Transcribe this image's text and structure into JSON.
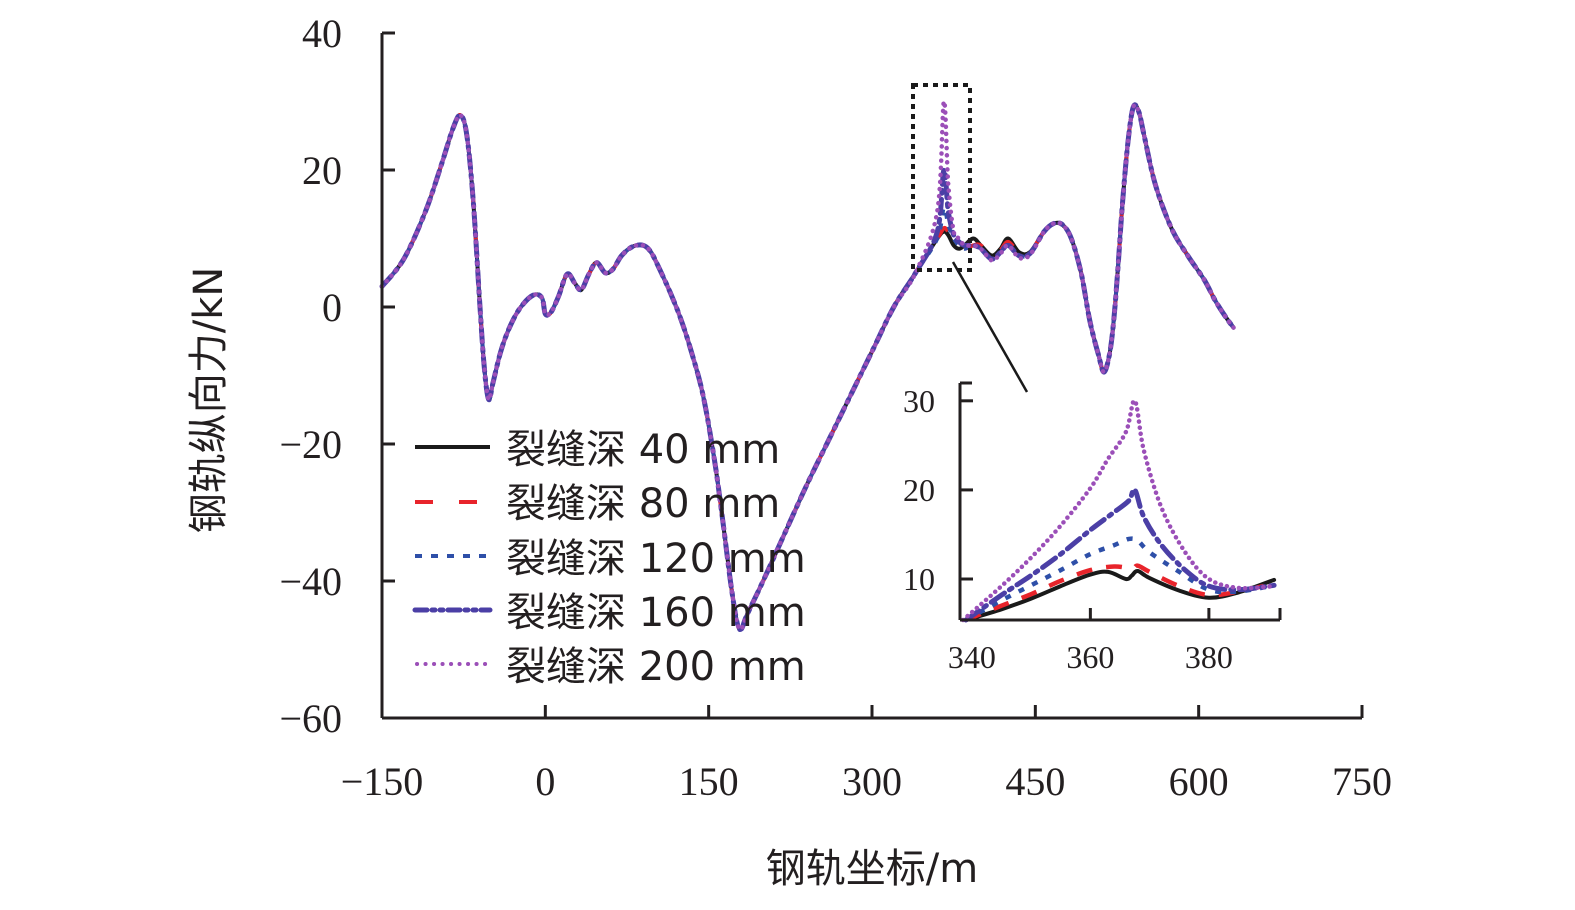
{
  "chart_data": [
    {
      "type": "line",
      "title": "",
      "xlabel": "钢轨坐标/m",
      "ylabel": "钢轨纵向力/kN",
      "xlim": [
        -150,
        750
      ],
      "ylim": [
        -60,
        40
      ],
      "xticks": [
        "−150",
        "0",
        "150",
        "300",
        "450",
        "600",
        "750"
      ],
      "xtick_values": [
        -150,
        0,
        150,
        300,
        450,
        600,
        750
      ],
      "yticks": [
        "40",
        "20",
        "0",
        "−20",
        "−40",
        "−60"
      ],
      "ytick_values": [
        40,
        20,
        0,
        -20,
        -40,
        -60
      ],
      "grid": false,
      "legend_position": "bottom-left",
      "x": [
        -150,
        -130,
        -110,
        -95,
        -85,
        -78,
        -72,
        -66,
        -60,
        -56,
        -52,
        -48,
        -40,
        -30,
        -20,
        -10,
        -3,
        0,
        5,
        12,
        20,
        27,
        33,
        40,
        47,
        55,
        62,
        70,
        80,
        90,
        97,
        105,
        115,
        125,
        135,
        145,
        155,
        162,
        170,
        176,
        180,
        185,
        200,
        220,
        240,
        260,
        280,
        300,
        320,
        340,
        360
      ],
      "base_values": [
        3,
        7,
        14,
        21,
        26,
        28,
        25,
        15,
        0,
        -9,
        -13.5,
        -11,
        -6,
        -2,
        0.5,
        1.8,
        1.3,
        -1,
        -0.8,
        1.5,
        4.8,
        3.5,
        2.5,
        4.8,
        6.5,
        5,
        5.5,
        7.5,
        8.8,
        9,
        8,
        5.5,
        2,
        -2,
        -7,
        -13,
        -22,
        -30,
        -40,
        -46,
        -47,
        -45,
        -40,
        -33,
        -26,
        -19.5,
        -13,
        -6.5,
        0,
        5,
        10
      ],
      "x_right": [
        360,
        366,
        370,
        375,
        380,
        385,
        393,
        400,
        410,
        418,
        425,
        435,
        445,
        458,
        467,
        475,
        483,
        492,
        500,
        508,
        513,
        518,
        522,
        526,
        530,
        535,
        540,
        545,
        550,
        560,
        575,
        590,
        605,
        615,
        625,
        632
      ],
      "series": [
        {
          "name": "裂缝深 40 mm",
          "color": "#1a1a1a",
          "style": "solid",
          "peak": 11,
          "right_values": [
            10,
            11,
            10.5,
            9,
            8.5,
            9,
            10,
            9,
            7.5,
            8.5,
            10,
            8,
            8,
            11,
            12.2,
            12,
            10,
            5,
            -2,
            -7,
            -9.5,
            -7,
            -2,
            6,
            15,
            24,
            29.2,
            28.5,
            25,
            18,
            11.5,
            7.5,
            4,
            1,
            -1.5,
            -3
          ]
        },
        {
          "name": "裂缝深 80 mm",
          "color": "#e8242b",
          "style": "dash",
          "peak": 11.5,
          "right_values": [
            10,
            11.5,
            11,
            10,
            9,
            8.5,
            9,
            9,
            7.3,
            8.3,
            9.5,
            8,
            8,
            11,
            12.2,
            12,
            10,
            5,
            -2,
            -7,
            -9.5,
            -7,
            -2,
            6,
            15,
            24,
            29.2,
            28.5,
            25,
            18,
            11.5,
            7.5,
            4,
            1,
            -1.5,
            -3
          ]
        },
        {
          "name": "裂缝深 120 mm",
          "color": "#2e4fa8",
          "style": "dot-square",
          "peak": 14.5,
          "right_values": [
            10,
            14.5,
            12,
            10,
            9,
            8.5,
            9,
            8.5,
            7,
            8,
            9,
            7.5,
            7.8,
            11,
            12.2,
            12,
            10,
            5,
            -2,
            -7,
            -9.5,
            -7,
            -2,
            6,
            15,
            24,
            29.2,
            28.5,
            25,
            18,
            11.5,
            7.5,
            4,
            1,
            -1.5,
            -3
          ]
        },
        {
          "name": "裂缝深 160 mm",
          "color": "#4b3fa6",
          "style": "dash-dot",
          "peak": 20,
          "right_values": [
            11,
            20,
            14,
            10.5,
            9.5,
            9,
            9,
            8.5,
            7,
            8,
            9,
            7.5,
            7.8,
            11,
            12.2,
            12,
            10,
            5,
            -2,
            -7,
            -9.5,
            -7,
            -2,
            6,
            15,
            24,
            29.2,
            28.5,
            25,
            18,
            11.5,
            7.5,
            4,
            1,
            -1.5,
            -3
          ]
        },
        {
          "name": "裂缝深 200 mm",
          "color": "#9b4fb8",
          "style": "dot",
          "peak": 30,
          "right_values": [
            14,
            30,
            18,
            11,
            10,
            9,
            9,
            8.5,
            6.8,
            7.8,
            9,
            7.2,
            7.6,
            11,
            12.2,
            12,
            10,
            5,
            -2,
            -7,
            -9.5,
            -7,
            -2,
            6,
            15,
            24,
            29.2,
            28.5,
            25,
            18,
            11.5,
            7.5,
            4,
            1,
            -1.5,
            -3
          ]
        }
      ],
      "zoom_box": {
        "x_range": [
          335,
          390
        ],
        "y_range": [
          6,
          32
        ]
      }
    },
    {
      "type": "line",
      "title": "",
      "xlabel": "",
      "ylabel": "",
      "xlim": [
        338,
        392
      ],
      "ylim": [
        5.4,
        32
      ],
      "xticks": [
        "340",
        "360",
        "380"
      ],
      "xtick_values": [
        340,
        360,
        380
      ],
      "yticks": [
        "30",
        "20",
        "10"
      ],
      "ytick_values": [
        30,
        20,
        10
      ],
      "grid": false,
      "series": [
        {
          "name": "裂缝深 40 mm",
          "color": "#1a1a1a",
          "style": "solid",
          "x": [
            339,
            345,
            350,
            355,
            360,
            363,
            366,
            367,
            368,
            370,
            375,
            380,
            385,
            391
          ],
          "values": [
            5.4,
            6.6,
            7.8,
            9.2,
            10.5,
            10.8,
            10.0,
            10.4,
            10.9,
            10.1,
            8.7,
            7.9,
            8.5,
            9.9
          ]
        },
        {
          "name": "裂缝深 80 mm",
          "color": "#e8242b",
          "style": "dash",
          "x": [
            339,
            345,
            350,
            355,
            360,
            364,
            367,
            368,
            370,
            375,
            380,
            385,
            391
          ],
          "values": [
            5.4,
            7.0,
            8.3,
            9.8,
            11.0,
            11.4,
            11.2,
            11.5,
            10.8,
            9.2,
            8.2,
            8.6,
            9.5
          ]
        },
        {
          "name": "裂缝深 120 mm",
          "color": "#2e4fa8",
          "style": "dot-square",
          "x": [
            339,
            345,
            350,
            355,
            360,
            364,
            366.5,
            368,
            370,
            375,
            380,
            385,
            391
          ],
          "values": [
            5.4,
            7.6,
            9.3,
            11.0,
            12.8,
            13.8,
            14.5,
            14.3,
            13.0,
            10.8,
            8.8,
            8.6,
            9.3
          ]
        },
        {
          "name": "裂缝深 160 mm",
          "color": "#4b3fa6",
          "style": "dash-dot",
          "x": [
            339,
            345,
            350,
            355,
            360,
            364,
            366.5,
            367.5,
            369,
            372,
            376,
            380,
            385,
            391
          ],
          "values": [
            5.4,
            8.2,
            10.4,
            12.8,
            15.5,
            17.5,
            18.8,
            20.0,
            17.0,
            13.8,
            11.0,
            9.2,
            8.8,
            9.3
          ]
        },
        {
          "name": "裂缝深 200 mm",
          "color": "#9b4fb8",
          "style": "dot",
          "x": [
            338.5,
            345,
            350,
            355,
            360,
            363,
            366,
            367.5,
            369,
            372,
            376,
            380,
            385,
            391
          ],
          "values": [
            5.4,
            9.2,
            12.4,
            16.0,
            20.2,
            23.5,
            26.5,
            30.0,
            24.5,
            18.0,
            13.0,
            10.0,
            9.0,
            9.2
          ]
        }
      ]
    }
  ],
  "legend": {
    "items": [
      {
        "label": "裂缝深 40 mm"
      },
      {
        "label": "裂缝深 80 mm"
      },
      {
        "label": "裂缝深 120 mm"
      },
      {
        "label": "裂缝深 160 mm"
      },
      {
        "label": "裂缝深 200 mm"
      }
    ]
  }
}
